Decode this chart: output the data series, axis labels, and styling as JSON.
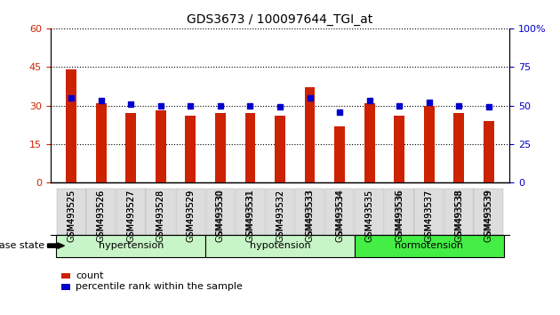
{
  "title": "GDS3673 / 100097644_TGI_at",
  "samples": [
    "GSM493525",
    "GSM493526",
    "GSM493527",
    "GSM493528",
    "GSM493529",
    "GSM493530",
    "GSM493531",
    "GSM493532",
    "GSM493533",
    "GSM493534",
    "GSM493535",
    "GSM493536",
    "GSM493537",
    "GSM493538",
    "GSM493539"
  ],
  "counts": [
    44,
    31,
    27,
    28,
    26,
    27,
    27,
    26,
    37,
    22,
    31,
    26,
    30,
    27,
    24
  ],
  "percentiles": [
    55,
    53,
    51,
    50,
    50,
    50,
    50,
    49,
    55,
    46,
    53,
    50,
    52,
    50,
    49
  ],
  "bar_color": "#cc2200",
  "dot_color": "#0000cc",
  "left_ylim": [
    0,
    60
  ],
  "right_ylim": [
    0,
    100
  ],
  "left_yticks": [
    0,
    15,
    30,
    45,
    60
  ],
  "right_yticks": [
    0,
    25,
    50,
    75,
    100
  ],
  "right_yticklabels": [
    "0",
    "25",
    "50",
    "75",
    "100%"
  ],
  "legend_count_label": "count",
  "legend_pct_label": "percentile rank within the sample",
  "disease_state_label": "disease state",
  "group_labels": [
    "hypertension",
    "hypotension",
    "normotension"
  ],
  "group_starts": [
    0,
    5,
    10
  ],
  "group_ends": [
    5,
    10,
    15
  ],
  "group_colors": [
    "#c8f5c8",
    "#c8f5c8",
    "#44ee44"
  ],
  "bar_width": 0.35
}
